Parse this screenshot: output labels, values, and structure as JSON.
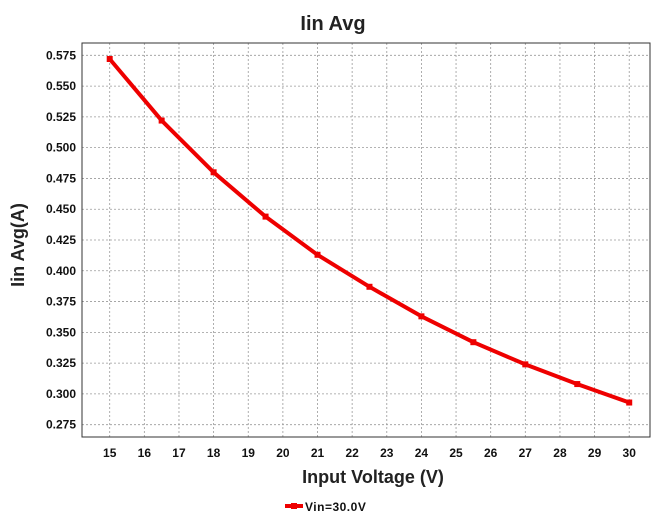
{
  "chart_data": {
    "type": "line",
    "title": "Iin Avg",
    "xlabel": "Input Voltage (V)",
    "ylabel": "Iin Avg(A)",
    "xlim": [
      14.2,
      30.6
    ],
    "ylim": [
      0.265,
      0.585
    ],
    "x_ticks": [
      "15",
      "16",
      "17",
      "18",
      "19",
      "20",
      "21",
      "22",
      "23",
      "24",
      "25",
      "26",
      "27",
      "28",
      "29",
      "30"
    ],
    "y_ticks": [
      "0.275",
      "0.300",
      "0.325",
      "0.350",
      "0.375",
      "0.400",
      "0.425",
      "0.450",
      "0.475",
      "0.500",
      "0.525",
      "0.550",
      "0.575"
    ],
    "grid": true,
    "legend_position": "bottom-center",
    "series": [
      {
        "name": "Vin=30.0V",
        "color": "#ee0000",
        "x": [
          15,
          16.5,
          18,
          19.5,
          21,
          22.5,
          24,
          25.5,
          27,
          28.5,
          30
        ],
        "values": [
          0.572,
          0.522,
          0.48,
          0.444,
          0.413,
          0.387,
          0.363,
          0.342,
          0.324,
          0.308,
          0.293
        ]
      }
    ]
  }
}
